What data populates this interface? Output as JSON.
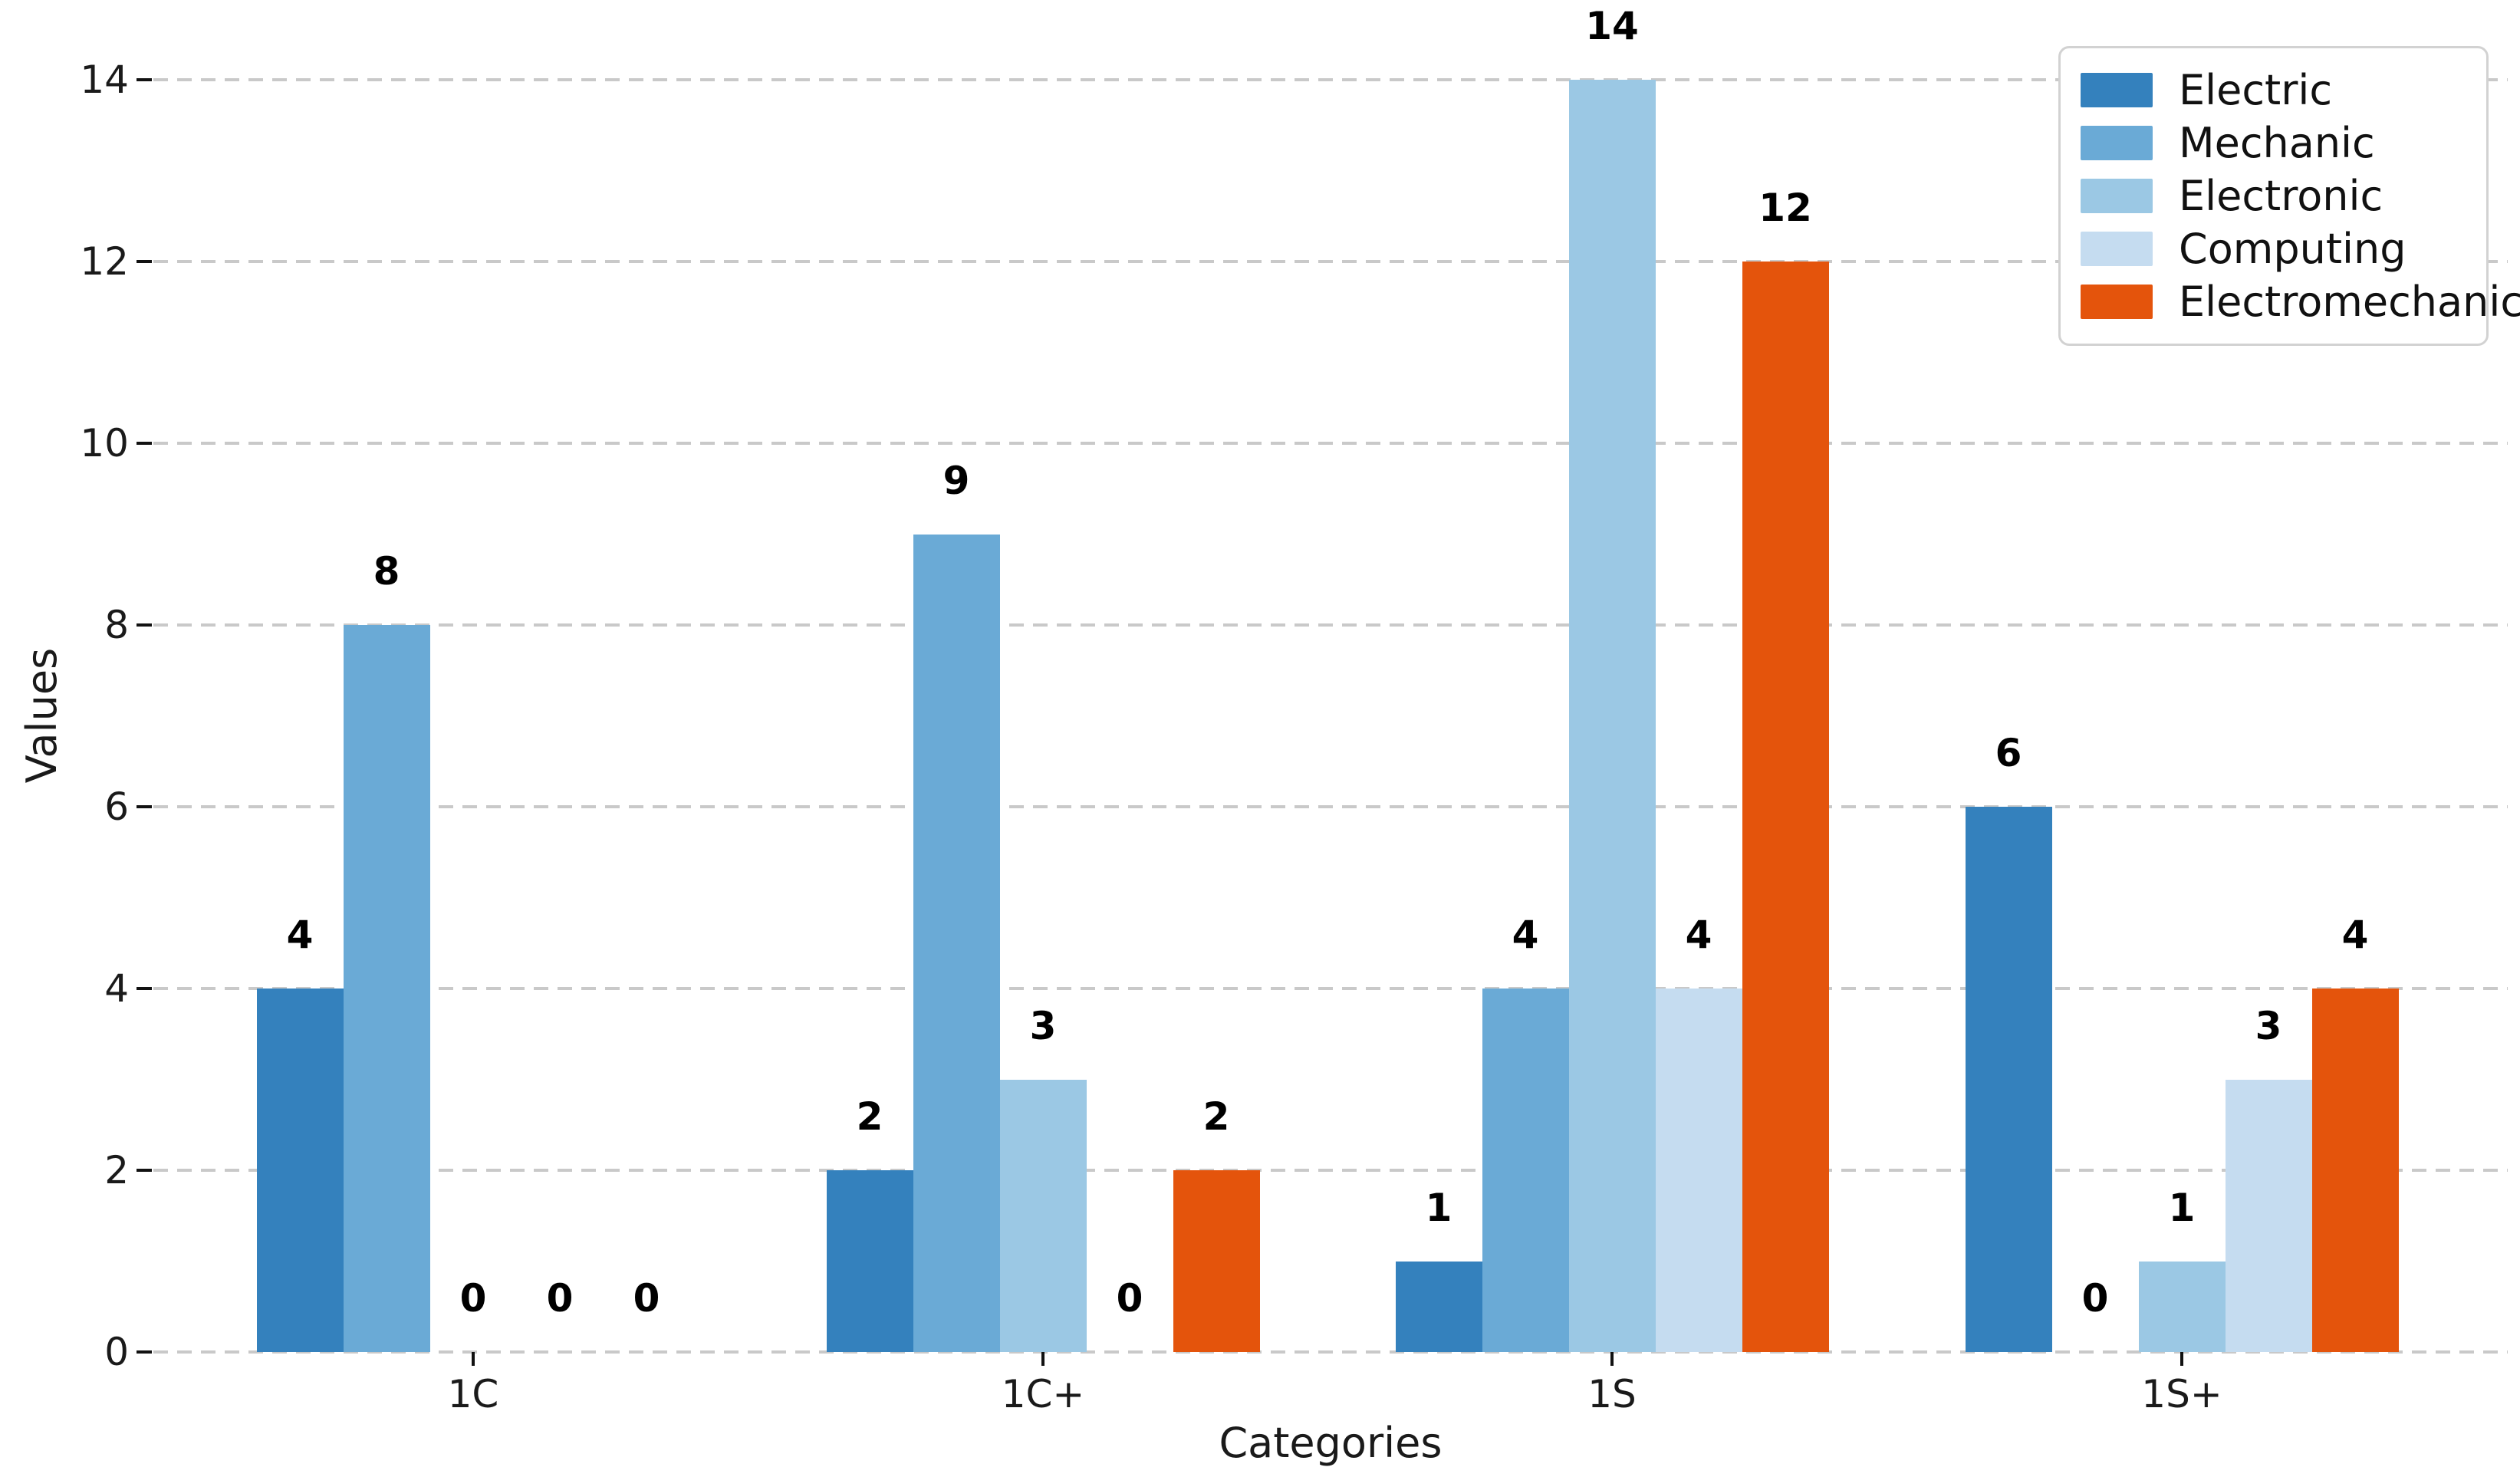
{
  "chart_data": {
    "type": "bar",
    "title": "",
    "xlabel": "Categories",
    "ylabel": "Values",
    "categories": [
      "1C",
      "1C+",
      "1S",
      "1S+"
    ],
    "series": [
      {
        "name": "Electric",
        "color": "#3481bd",
        "values": [
          4,
          2,
          1,
          6
        ]
      },
      {
        "name": "Mechanic",
        "color": "#6aaad6",
        "values": [
          8,
          9,
          4,
          0
        ]
      },
      {
        "name": "Electronic",
        "color": "#9bc8e4",
        "values": [
          0,
          3,
          14,
          1
        ]
      },
      {
        "name": "Computing",
        "color": "#c5dcf0",
        "values": [
          0,
          0,
          4,
          3
        ]
      },
      {
        "name": "Electromechanic",
        "color": "#e4540c",
        "values": [
          0,
          2,
          12,
          4
        ]
      }
    ],
    "ylim": [
      0,
      14
    ],
    "yticks": [
      0,
      2,
      4,
      6,
      8,
      10,
      12,
      14
    ],
    "bar_value_labels": true,
    "grid": "horizontal-dashed",
    "grid_color": "#c9c9c9",
    "legend_position": "upper-right",
    "background_color": "#ffffff",
    "text_color": "#1a1a1a"
  }
}
